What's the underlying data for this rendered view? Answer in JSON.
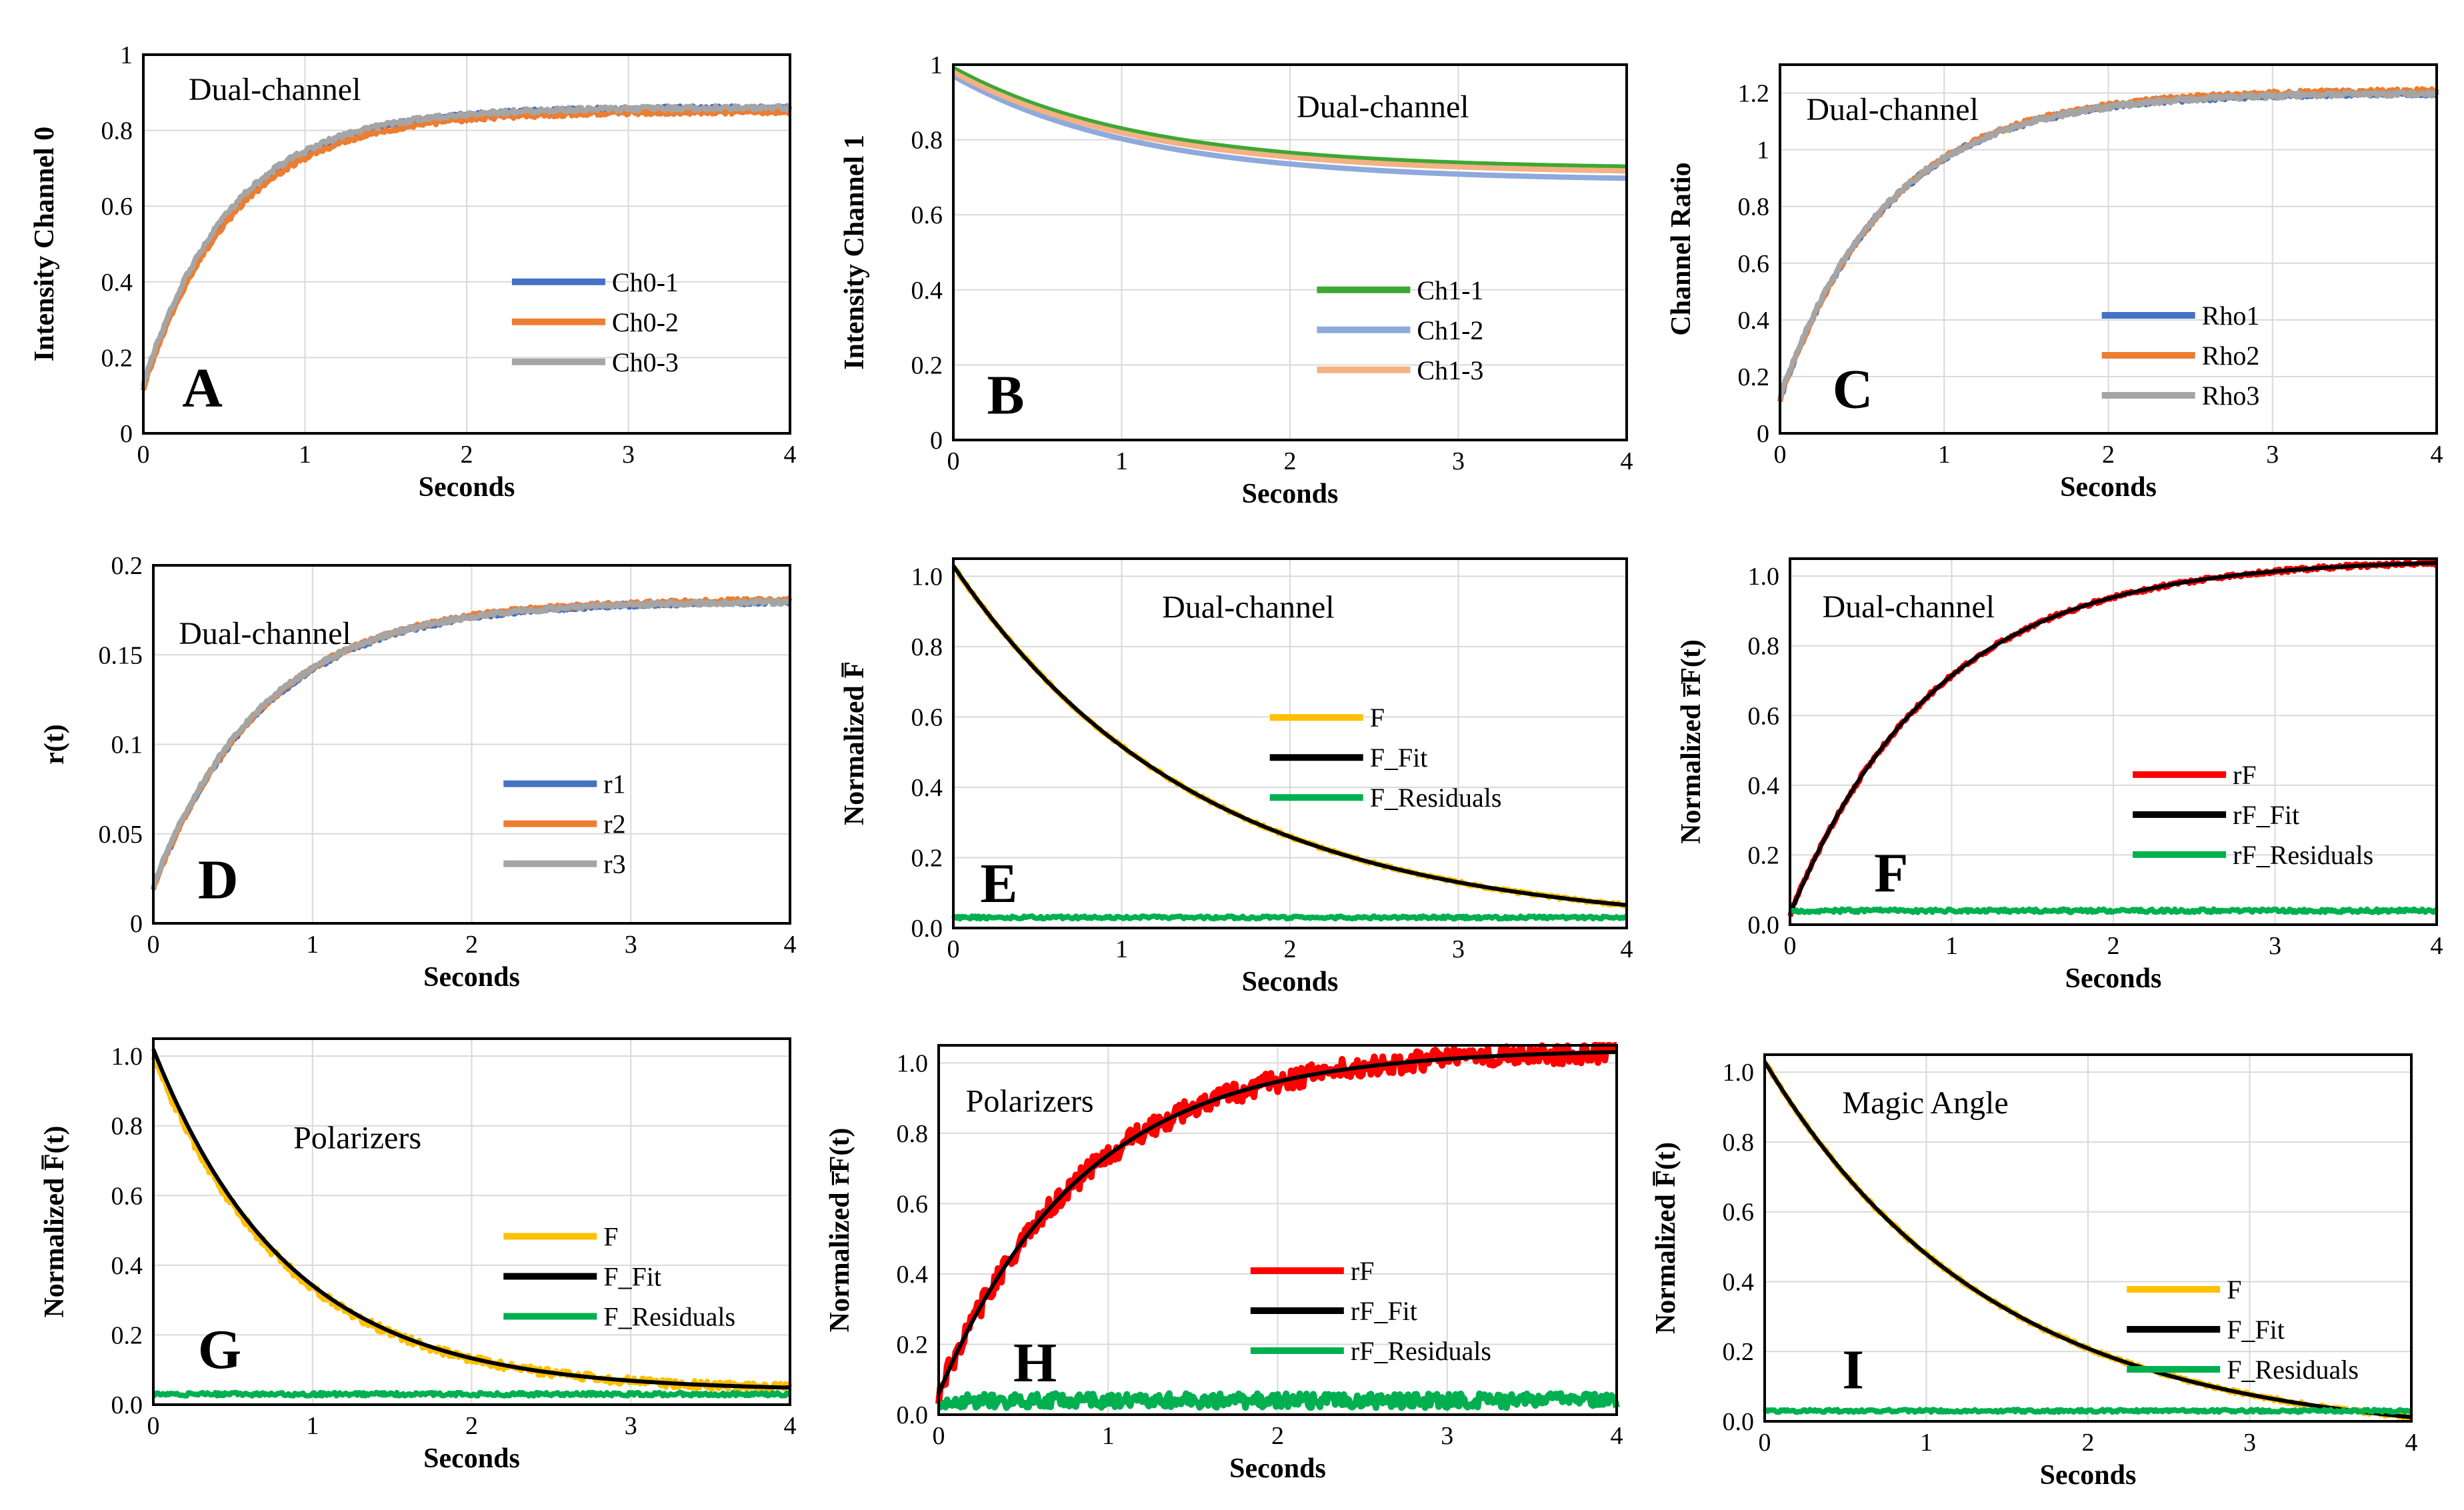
{
  "figure": {
    "description_label": "Nine-panel fluorescence anisotropy figure"
  },
  "chart_data": [
    {
      "id": "A",
      "type": "line",
      "panel_label": "A",
      "annotation": "Dual-channel",
      "xlabel": "Seconds",
      "ylabel": "Intensity Channel 0",
      "xlim": [
        0,
        4
      ],
      "ylim": [
        0,
        1
      ],
      "xticks": [
        "0",
        "1",
        "2",
        "3",
        "4"
      ],
      "yticks": [
        "0",
        "0.2",
        "0.4",
        "0.6",
        "0.8",
        "1"
      ],
      "yticks_num": [
        0,
        0.2,
        0.4,
        0.6,
        0.8,
        1
      ],
      "series": [
        {
          "name": "Ch0-1",
          "color": "#4472C4",
          "model": {
            "start": 0.12,
            "end": 0.86,
            "tau": 0.55
          },
          "noise": 0.006
        },
        {
          "name": "Ch0-2",
          "color": "#ED7D31",
          "model": {
            "start": 0.12,
            "end": 0.85,
            "tau": 0.56
          },
          "noise": 0.006
        },
        {
          "name": "Ch0-3",
          "color": "#A5A5A5",
          "model": {
            "start": 0.13,
            "end": 0.86,
            "tau": 0.54
          },
          "noise": 0.006
        }
      ]
    },
    {
      "id": "B",
      "type": "line",
      "panel_label": "B",
      "annotation": "Dual-channel",
      "xlabel": "Seconds",
      "ylabel": "Intensity Channel 1",
      "xlim": [
        0,
        4
      ],
      "ylim": [
        0,
        1
      ],
      "xticks": [
        "0",
        "1",
        "2",
        "3",
        "4"
      ],
      "yticks": [
        "0",
        "0.2",
        "0.4",
        "0.6",
        "0.8",
        "1"
      ],
      "yticks_num": [
        0,
        0.2,
        0.4,
        0.6,
        0.8,
        1
      ],
      "series": [
        {
          "name": "Ch1-1",
          "color": "#3DA834",
          "model": {
            "start": 0.99,
            "end": 0.72,
            "tau": 1.1
          },
          "noise": 0
        },
        {
          "name": "Ch1-2",
          "color": "#8EA9DB",
          "model": {
            "start": 0.97,
            "end": 0.69,
            "tau": 1.1
          },
          "noise": 0
        },
        {
          "name": "Ch1-3",
          "color": "#F4B183",
          "model": {
            "start": 0.98,
            "end": 0.71,
            "tau": 1.1
          },
          "noise": 0
        }
      ]
    },
    {
      "id": "C",
      "type": "line",
      "panel_label": "C",
      "annotation": "Dual-channel",
      "xlabel": "Seconds",
      "ylabel": "Channel Ratio",
      "xlim": [
        0,
        4
      ],
      "ylim": [
        0,
        1.3
      ],
      "xticks": [
        "0",
        "1",
        "2",
        "3",
        "4"
      ],
      "yticks": [
        "0",
        "0.2",
        "0.4",
        "0.6",
        "0.8",
        "1",
        "1.2"
      ],
      "yticks_num": [
        0,
        0.2,
        0.4,
        0.6,
        0.8,
        1,
        1.2
      ],
      "series": [
        {
          "name": "Rho1",
          "color": "#4472C4",
          "model": {
            "start": 0.12,
            "end": 1.2,
            "tau": 0.65
          },
          "noise": 0.008
        },
        {
          "name": "Rho2",
          "color": "#ED7D31",
          "model": {
            "start": 0.12,
            "end": 1.21,
            "tau": 0.66
          },
          "noise": 0.008
        },
        {
          "name": "Rho3",
          "color": "#A5A5A5",
          "model": {
            "start": 0.13,
            "end": 1.2,
            "tau": 0.65
          },
          "noise": 0.008
        }
      ]
    },
    {
      "id": "D",
      "type": "line",
      "panel_label": "D",
      "annotation": "Dual-channel",
      "xlabel": "Seconds",
      "ylabel": "r(t)",
      "xlim": [
        0,
        4
      ],
      "ylim": [
        0,
        0.2
      ],
      "xticks": [
        "0",
        "1",
        "2",
        "3",
        "4"
      ],
      "yticks": [
        "0",
        "0.05",
        "0.1",
        "0.15",
        "0.2"
      ],
      "yticks_num": [
        0,
        0.05,
        0.1,
        0.15,
        0.2
      ],
      "series": [
        {
          "name": "r1",
          "color": "#4472C4",
          "model": {
            "start": 0.02,
            "end": 0.18,
            "tau": 0.7
          },
          "noise": 0.0012
        },
        {
          "name": "r2",
          "color": "#ED7D31",
          "model": {
            "start": 0.02,
            "end": 0.181,
            "tau": 0.7
          },
          "noise": 0.0012
        },
        {
          "name": "r3",
          "color": "#A5A5A5",
          "model": {
            "start": 0.021,
            "end": 0.18,
            "tau": 0.69
          },
          "noise": 0.0012
        }
      ]
    },
    {
      "id": "E",
      "type": "line",
      "panel_label": "E",
      "annotation": "Dual-channel",
      "xlabel": "Seconds",
      "ylabel": "Normalized F̅",
      "xlim": [
        0,
        4
      ],
      "ylim": [
        0,
        1.05
      ],
      "xticks": [
        "0",
        "1",
        "2",
        "3",
        "4"
      ],
      "yticks": [
        "0.0",
        "0.2",
        "0.4",
        "0.6",
        "0.8",
        "1.0"
      ],
      "yticks_num": [
        0,
        0.2,
        0.4,
        0.6,
        0.8,
        1.0
      ],
      "series": [
        {
          "name": "F",
          "color": "#FFC000",
          "model": {
            "start": 1.03,
            "end": 0.0,
            "tau": 1.45
          },
          "noise": 0.004
        },
        {
          "name": "F_Fit",
          "color": "#000000",
          "model": {
            "start": 1.03,
            "end": 0.0,
            "tau": 1.45
          },
          "noise": 0
        },
        {
          "name": "F_Residuals",
          "color": "#00B050",
          "model": {
            "start": 0.03,
            "end": 0.03,
            "tau": 1
          },
          "noise": 0.004
        }
      ]
    },
    {
      "id": "F",
      "type": "line",
      "panel_label": "F",
      "annotation": "Dual-channel",
      "xlabel": "Seconds",
      "ylabel": "Normalized r̅F(t)",
      "xlim": [
        0,
        4
      ],
      "ylim": [
        0,
        1.05
      ],
      "xticks": [
        "0",
        "1",
        "2",
        "3",
        "4"
      ],
      "yticks": [
        "0.0",
        "0.2",
        "0.4",
        "0.6",
        "0.8",
        "1.0"
      ],
      "yticks_num": [
        0,
        0.2,
        0.4,
        0.6,
        0.8,
        1.0
      ],
      "series": [
        {
          "name": "rF",
          "color": "#FF0000",
          "model": {
            "start": 0.03,
            "end": 1.05,
            "tau": 0.9
          },
          "noise": 0.006
        },
        {
          "name": "rF_Fit",
          "color": "#000000",
          "model": {
            "start": 0.03,
            "end": 1.05,
            "tau": 0.9
          },
          "noise": 0
        },
        {
          "name": "rF_Residuals",
          "color": "#00B050",
          "model": {
            "start": 0.04,
            "end": 0.04,
            "tau": 1
          },
          "noise": 0.005
        }
      ]
    },
    {
      "id": "G",
      "type": "line",
      "panel_label": "G",
      "annotation": "Polarizers",
      "xlabel": "Seconds",
      "ylabel": "Normalized F̅(t)",
      "xlim": [
        0,
        4
      ],
      "ylim": [
        0,
        1.05
      ],
      "xticks": [
        "0",
        "1",
        "2",
        "3",
        "4"
      ],
      "yticks": [
        "0.0",
        "0.2",
        "0.4",
        "0.6",
        "0.8",
        "1.0"
      ],
      "yticks_num": [
        0,
        0.2,
        0.4,
        0.6,
        0.8,
        1.0
      ],
      "series": [
        {
          "name": "F",
          "color": "#FFC000",
          "model": {
            "start": 1.0,
            "end": 0.04,
            "tau": 0.85
          },
          "noise": 0.012
        },
        {
          "name": "F_Fit",
          "color": "#000000",
          "model": {
            "start": 1.02,
            "end": 0.04,
            "tau": 0.85
          },
          "noise": 0
        },
        {
          "name": "F_Residuals",
          "color": "#00B050",
          "model": {
            "start": 0.03,
            "end": 0.03,
            "tau": 1
          },
          "noise": 0.005
        }
      ]
    },
    {
      "id": "H",
      "type": "line",
      "panel_label": "H",
      "annotation": "Polarizers",
      "xlabel": "Seconds",
      "ylabel": "Normalized r̅F(t)",
      "xlim": [
        0,
        4
      ],
      "ylim": [
        0,
        1.05
      ],
      "xticks": [
        "0",
        "1",
        "2",
        "3",
        "4"
      ],
      "yticks": [
        "0.0",
        "0.2",
        "0.4",
        "0.6",
        "0.8",
        "1.0"
      ],
      "yticks_num": [
        0,
        0.2,
        0.4,
        0.6,
        0.8,
        1.0
      ],
      "series": [
        {
          "name": "rF",
          "color": "#FF0000",
          "model": {
            "start": 0.06,
            "end": 1.04,
            "tau": 0.85
          },
          "noise": 0.03
        },
        {
          "name": "rF_Fit",
          "color": "#000000",
          "model": {
            "start": 0.06,
            "end": 1.04,
            "tau": 0.85
          },
          "noise": 0
        },
        {
          "name": "rF_Residuals",
          "color": "#00B050",
          "model": {
            "start": 0.04,
            "end": 0.04,
            "tau": 1
          },
          "noise": 0.02
        }
      ]
    },
    {
      "id": "I",
      "type": "line",
      "panel_label": "I",
      "annotation": "Magic Angle",
      "xlabel": "Seconds",
      "ylabel": "Normalized F̅(t)",
      "xlim": [
        0,
        4
      ],
      "ylim": [
        0,
        1.05
      ],
      "xticks": [
        "0",
        "1",
        "2",
        "3",
        "4"
      ],
      "yticks": [
        "0.0",
        "0.2",
        "0.4",
        "0.6",
        "0.8",
        "1.0"
      ],
      "yticks_num": [
        0,
        0.2,
        0.4,
        0.6,
        0.8,
        1.0
      ],
      "series": [
        {
          "name": "F",
          "color": "#FFC000",
          "model": {
            "start": 1.03,
            "end": -0.05,
            "tau": 1.4
          },
          "noise": 0.005
        },
        {
          "name": "F_Fit",
          "color": "#000000",
          "model": {
            "start": 1.03,
            "end": -0.05,
            "tau": 1.4
          },
          "noise": 0
        },
        {
          "name": "F_Residuals",
          "color": "#00B050",
          "model": {
            "start": 0.03,
            "end": 0.03,
            "tau": 1
          },
          "noise": 0.004
        }
      ]
    }
  ]
}
